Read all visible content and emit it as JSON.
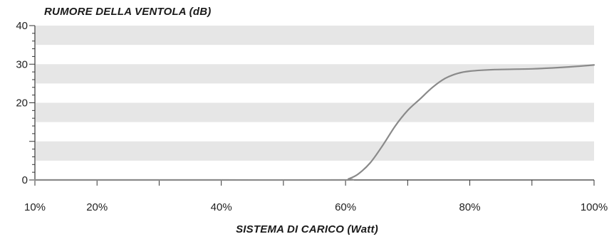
{
  "chart_data": {
    "type": "line",
    "ylabel": "RUMORE DELLA VENTOLA (dB)",
    "xlabel": "SISTEMA DI CARICO (Watt)",
    "xlim": [
      10,
      100
    ],
    "ylim": [
      0,
      40
    ],
    "x_ticks": [
      "10%",
      "20%",
      "40%",
      "60%",
      "80%",
      "100%"
    ],
    "x_tick_values": [
      10,
      20,
      40,
      60,
      80,
      100
    ],
    "y_ticks": [
      "0",
      "20",
      "30",
      "40"
    ],
    "y_tick_values": [
      0,
      20,
      30,
      40
    ],
    "grid": "horizontal bands",
    "band_color": "#e6e6e6",
    "line_color": "#8a8a8a",
    "axis_color": "#333333",
    "series": [
      {
        "values": [
          [
            10,
            0
          ],
          [
            20,
            0
          ],
          [
            40,
            0
          ],
          [
            59.5,
            0
          ],
          [
            60.5,
            0.3
          ],
          [
            62,
            1.5
          ],
          [
            64,
            4.5
          ],
          [
            66,
            9.0
          ],
          [
            68,
            14.0
          ],
          [
            70,
            18.0
          ],
          [
            72,
            21.0
          ],
          [
            74,
            24.0
          ],
          [
            76,
            26.3
          ],
          [
            78,
            27.6
          ],
          [
            80,
            28.2
          ],
          [
            84,
            28.6
          ],
          [
            90,
            28.8
          ],
          [
            95,
            29.2
          ],
          [
            100,
            29.8
          ]
        ]
      }
    ]
  }
}
